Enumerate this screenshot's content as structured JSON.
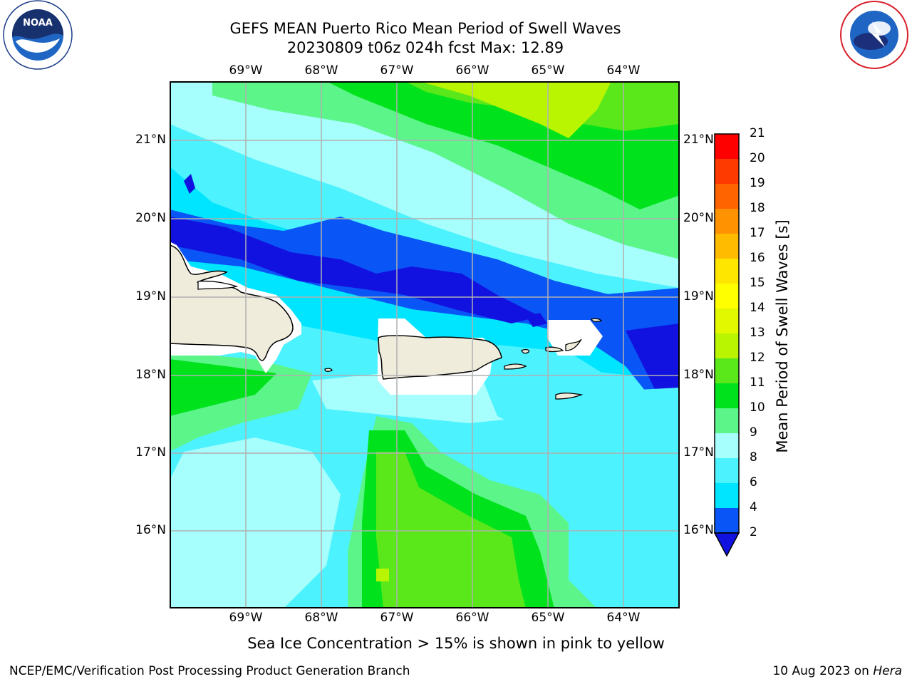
{
  "title_line1": "GEFS MEAN Puerto Rico Mean Period of Swell Waves",
  "title_line2": "20230809 t06z 024h fcst   Max: 12.89",
  "logos": {
    "left": {
      "name": "noaa-logo",
      "text": "NOAA",
      "ring_text": "NATIONAL OCEANIC AND ATMOSPHERIC ADMINISTRATION · U.S. DEPARTMENT OF COMMERCE"
    },
    "right": {
      "name": "nws-logo",
      "ring_text": "NATIONAL WEATHER SERVICE"
    }
  },
  "map": {
    "lon_labels": [
      "69°W",
      "68°W",
      "67°W",
      "66°W",
      "65°W",
      "64°W"
    ],
    "lat_labels": [
      "21°N",
      "20°N",
      "19°N",
      "18°N",
      "17°N",
      "16°N"
    ],
    "land_color": "#efecdc",
    "grid_color": "#b0b0b0"
  },
  "colorbar": {
    "label": "Mean Period of Swell Waves [s]",
    "ticks": [
      "2",
      "4",
      "6",
      "8",
      "9",
      "10",
      "11",
      "12",
      "13",
      "14",
      "15",
      "16",
      "17",
      "18",
      "19",
      "20",
      "21"
    ],
    "colors": [
      "#0a55f5",
      "#00e5ff",
      "#4df2ff",
      "#a6fffd",
      "#5cf58a",
      "#00e31c",
      "#5ae81a",
      "#b9f500",
      "#e2f800",
      "#ffff00",
      "#ffe600",
      "#ffbb00",
      "#ff9200",
      "#ff6400",
      "#ff3a00",
      "#ff0000"
    ],
    "under_color": "#1212e0"
  },
  "caption": "Sea Ice Concentration > 15% is shown in pink to yellow",
  "footer_left": "NCEP/EMC/Verification Post Processing Product Generation Branch",
  "footer_date": "10 Aug 2023 on",
  "footer_host": "Hera"
}
